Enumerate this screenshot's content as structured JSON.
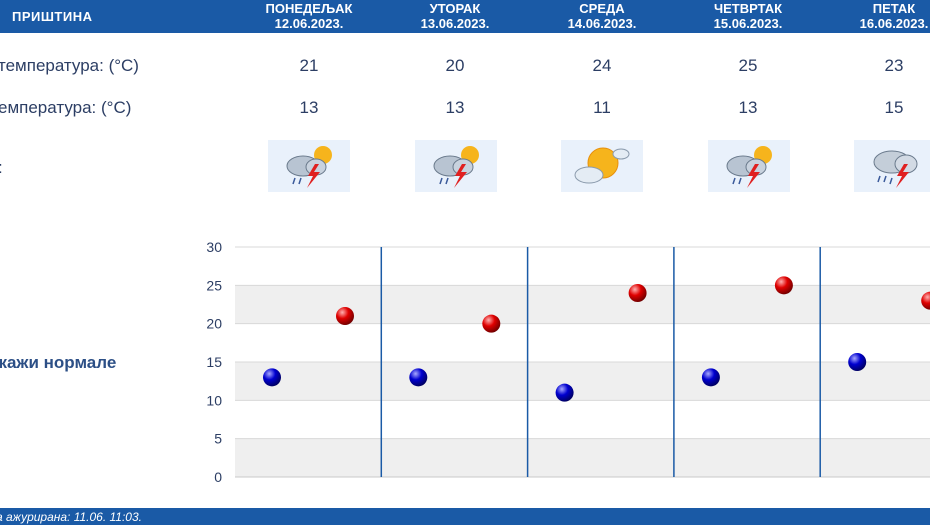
{
  "header": {
    "city": "ПРИШТИНА",
    "days": [
      {
        "name": "ПОНЕДЕЉАК",
        "date": "12.06.2023."
      },
      {
        "name": "УТОРАК",
        "date": "13.06.2023."
      },
      {
        "name": "СРЕДА",
        "date": "14.06.2023."
      },
      {
        "name": "ЧЕТВРТАК",
        "date": "15.06.2023."
      },
      {
        "name": "ПЕТАК",
        "date": "16.06.2023."
      }
    ]
  },
  "rows": {
    "max_label": "температура: (°C)",
    "min_label": "емпература: (°C)",
    "weather_label": ":"
  },
  "weather_icons": [
    "sun-cloud-storm-icon",
    "sun-cloud-storm-icon",
    "sun-cloud-icon",
    "sun-cloud-storm-icon",
    "cloud-rain-storm-icon"
  ],
  "normals_label": "икажи нормале",
  "footer": {
    "text": "а ажурирана:  11.06.  11:03."
  },
  "colors": {
    "header": "#1a5aa6",
    "max_dot": "#d40000",
    "min_dot": "#0000c0",
    "separator": "#1a5aa6"
  },
  "chart_data": {
    "type": "scatter",
    "categories": [
      "12.06.2023.",
      "13.06.2023.",
      "14.06.2023.",
      "15.06.2023.",
      "16.06.2023."
    ],
    "series": [
      {
        "values": [
          21,
          20,
          24,
          25,
          23
        ],
        "color": "#d40000"
      },
      {
        "values": [
          13,
          13,
          11,
          13,
          15
        ],
        "color": "#0000c0"
      }
    ],
    "ylim": [
      0,
      30
    ],
    "yticks": [
      0,
      5,
      10,
      15,
      20,
      25,
      30
    ],
    "grid": true,
    "title": "",
    "xlabel": "",
    "ylabel": ""
  }
}
